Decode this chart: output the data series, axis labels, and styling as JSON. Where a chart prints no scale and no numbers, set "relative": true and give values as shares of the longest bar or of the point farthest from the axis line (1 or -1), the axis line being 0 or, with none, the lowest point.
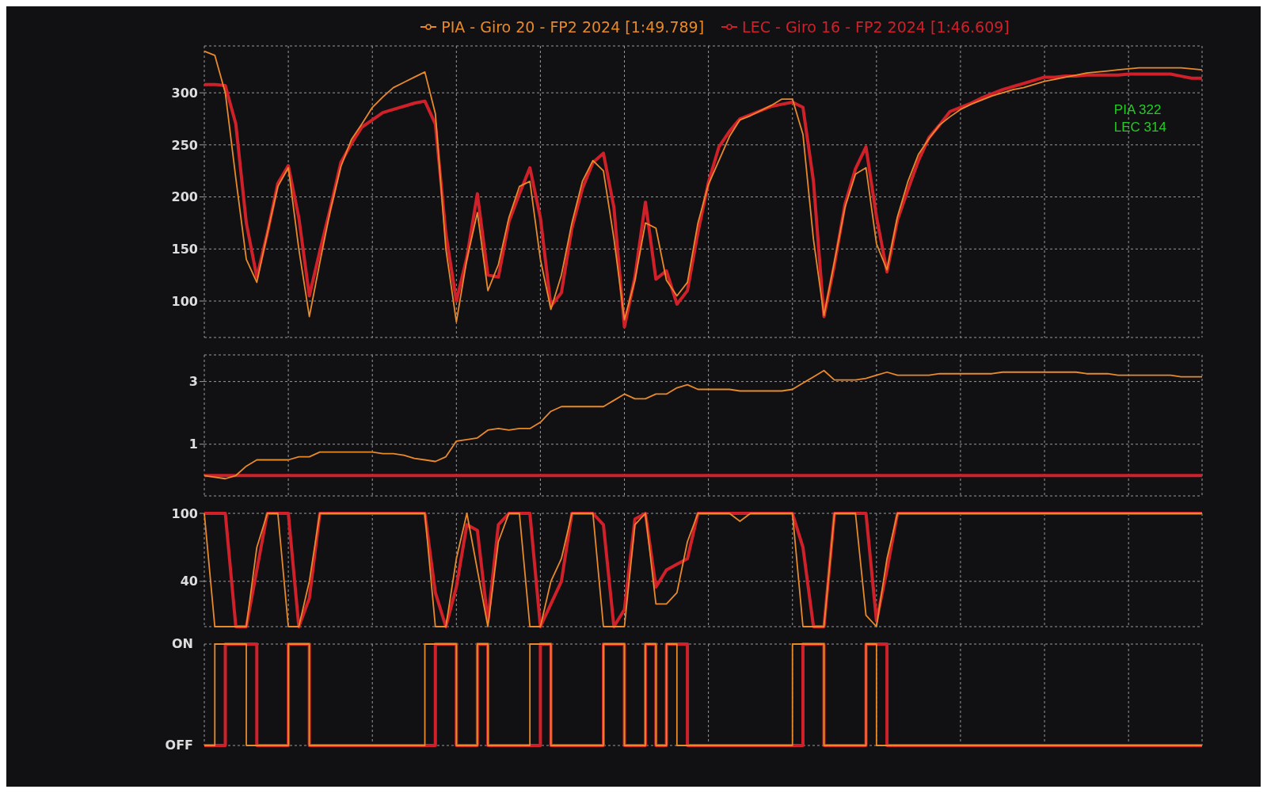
{
  "chart_data": [
    {
      "type": "line",
      "legend": "top",
      "grid": true,
      "annotations": [
        "PIA 322",
        "LEC 314"
      ],
      "ylim": [
        65,
        345
      ],
      "yticks": [
        100,
        150,
        200,
        250,
        300
      ],
      "categories": [
        null,
        null,
        null,
        null,
        null,
        null,
        null,
        null,
        null,
        null,
        null,
        null,
        null,
        null,
        null,
        null,
        null,
        null,
        null,
        null,
        null,
        null,
        null,
        null,
        null,
        null,
        null,
        null,
        null,
        null,
        null,
        null,
        null,
        null,
        null,
        null,
        null,
        null,
        null,
        null,
        null,
        null,
        null,
        null,
        null,
        null,
        null,
        null,
        null,
        null,
        null,
        null,
        null,
        null,
        null,
        null,
        null,
        null,
        null,
        null,
        null,
        null,
        null,
        null,
        null,
        null,
        null,
        null,
        null,
        null,
        null,
        null,
        null,
        null,
        null,
        null,
        null,
        null,
        null,
        null,
        null,
        null,
        null,
        null,
        null,
        null,
        null,
        null,
        null,
        null,
        null,
        null,
        null,
        null,
        null,
        null
      ],
      "series": [
        {
          "name": "PIA - Giro 20 - FP2 2024 [1:49.789]",
          "color": "#e8892a",
          "values": [
            340,
            336,
            300,
            218,
            140,
            118,
            165,
            210,
            228,
            150,
            85,
            137,
            187,
            229,
            255,
            270,
            286,
            296,
            305,
            310,
            315,
            320,
            280,
            150,
            80,
            140,
            185,
            110,
            135,
            180,
            210,
            215,
            140,
            92,
            125,
            175,
            215,
            235,
            225,
            160,
            82,
            120,
            175,
            170,
            120,
            105,
            118,
            175,
            212,
            235,
            258,
            274,
            278,
            283,
            288,
            294,
            294,
            260,
            159,
            86,
            138,
            190,
            222,
            228,
            155,
            130,
            181,
            215,
            241,
            256,
            269,
            277,
            284,
            289,
            293,
            297,
            300,
            303,
            305,
            308,
            311,
            313,
            315,
            317,
            319,
            320,
            321,
            322,
            323,
            324,
            324,
            324,
            324,
            324,
            323,
            322
          ]
        },
        {
          "name": "LEC - Giro 16 - FP2 2024 [1:46.609]",
          "color": "#d0202a",
          "values": [
            308,
            308,
            307,
            270,
            175,
            123,
            165,
            213,
            230,
            180,
            105,
            148,
            189,
            233,
            251,
            267,
            274,
            281,
            284,
            287,
            290,
            292,
            270,
            165,
            100,
            142,
            203,
            125,
            123,
            176,
            203,
            228,
            180,
            95,
            108,
            170,
            208,
            233,
            242,
            190,
            75,
            123,
            195,
            121,
            129,
            97,
            110,
            166,
            214,
            248,
            263,
            275,
            279,
            283,
            287,
            289,
            291,
            286,
            215,
            85,
            135,
            193,
            227,
            248,
            181,
            128,
            178,
            207,
            235,
            257,
            269,
            282,
            286,
            290,
            295,
            299,
            303,
            306,
            309,
            312,
            315,
            315,
            316,
            316,
            317,
            317,
            317,
            317,
            318,
            318,
            318,
            318,
            318,
            316,
            314,
            314
          ]
        }
      ]
    },
    {
      "type": "line",
      "grid": true,
      "ylim": [
        -0.65,
        3.85
      ],
      "yticks": [
        1,
        3
      ],
      "categories": [
        null,
        null,
        null,
        null,
        null,
        null,
        null,
        null,
        null,
        null,
        null,
        null,
        null,
        null,
        null,
        null,
        null,
        null,
        null,
        null,
        null,
        null,
        null,
        null,
        null,
        null,
        null,
        null,
        null,
        null,
        null,
        null,
        null,
        null,
        null,
        null,
        null,
        null,
        null,
        null,
        null,
        null,
        null,
        null,
        null,
        null,
        null,
        null,
        null,
        null,
        null,
        null,
        null,
        null,
        null,
        null,
        null,
        null,
        null,
        null,
        null,
        null,
        null,
        null,
        null,
        null,
        null,
        null,
        null,
        null,
        null,
        null,
        null,
        null,
        null,
        null,
        null,
        null,
        null,
        null,
        null,
        null,
        null,
        null,
        null,
        null,
        null,
        null,
        null,
        null,
        null,
        null,
        null,
        null,
        null,
        null
      ],
      "series": [
        {
          "color": "#e8892a",
          "values": [
            0,
            -0.05,
            -0.1,
            0,
            0.3,
            0.5,
            0.5,
            0.5,
            0.5,
            0.6,
            0.6,
            0.75,
            0.75,
            0.75,
            0.75,
            0.75,
            0.75,
            0.7,
            0.7,
            0.65,
            0.55,
            0.5,
            0.45,
            0.6,
            1.1,
            1.15,
            1.2,
            1.45,
            1.5,
            1.45,
            1.5,
            1.5,
            1.7,
            2.05,
            2.2,
            2.2,
            2.2,
            2.2,
            2.2,
            2.4,
            2.6,
            2.45,
            2.45,
            2.6,
            2.6,
            2.8,
            2.9,
            2.75,
            2.75,
            2.75,
            2.75,
            2.7,
            2.7,
            2.7,
            2.7,
            2.7,
            2.75,
            2.95,
            3.15,
            3.35,
            3.05,
            3.05,
            3.05,
            3.1,
            3.2,
            3.3,
            3.2,
            3.2,
            3.2,
            3.2,
            3.25,
            3.25,
            3.25,
            3.25,
            3.25,
            3.25,
            3.3,
            3.3,
            3.3,
            3.3,
            3.3,
            3.3,
            3.3,
            3.3,
            3.25,
            3.25,
            3.25,
            3.2,
            3.2,
            3.2,
            3.2,
            3.2,
            3.2,
            3.15,
            3.15,
            3.15
          ]
        },
        {
          "color": "#d0202a",
          "values": [
            0,
            0,
            0,
            0,
            0,
            0,
            0,
            0,
            0,
            0,
            0,
            0,
            0,
            0,
            0,
            0,
            0,
            0,
            0,
            0,
            0,
            0,
            0,
            0,
            0,
            0,
            0,
            0,
            0,
            0,
            0,
            0,
            0,
            0,
            0,
            0,
            0,
            0,
            0,
            0,
            0,
            0,
            0,
            0,
            0,
            0,
            0,
            0,
            0,
            0,
            0,
            0,
            0,
            0,
            0,
            0,
            0,
            0,
            0,
            0,
            0,
            0,
            0,
            0,
            0,
            0,
            0,
            0,
            0,
            0,
            0,
            0,
            0,
            0,
            0,
            0,
            0,
            0,
            0,
            0,
            0,
            0,
            0,
            0,
            0,
            0,
            0,
            0,
            0,
            0,
            0,
            0,
            0,
            0,
            0,
            0
          ]
        }
      ]
    },
    {
      "type": "line",
      "grid": true,
      "ylim": [
        0,
        100
      ],
      "yticks": [
        40,
        100
      ],
      "categories": [
        null,
        null,
        null,
        null,
        null,
        null,
        null,
        null,
        null,
        null,
        null,
        null,
        null,
        null,
        null,
        null,
        null,
        null,
        null,
        null,
        null,
        null,
        null,
        null,
        null,
        null,
        null,
        null,
        null,
        null,
        null,
        null,
        null,
        null,
        null,
        null,
        null,
        null,
        null,
        null,
        null,
        null,
        null,
        null,
        null,
        null,
        null,
        null,
        null,
        null,
        null,
        null,
        null,
        null,
        null,
        null,
        null,
        null,
        null,
        null,
        null,
        null,
        null,
        null,
        null,
        null,
        null,
        null,
        null,
        null,
        null,
        null,
        null,
        null,
        null,
        null,
        null,
        null,
        null,
        null,
        null,
        null,
        null,
        null,
        null,
        null,
        null,
        null,
        null,
        null,
        null,
        null,
        null,
        null,
        null,
        null
      ],
      "series": [
        {
          "color": "#e8892a",
          "values": [
            100,
            0,
            0,
            0,
            0,
            70,
            100,
            100,
            0,
            0,
            40,
            100,
            100,
            100,
            100,
            100,
            100,
            100,
            100,
            100,
            100,
            100,
            0,
            0,
            60,
            100,
            50,
            0,
            75,
            100,
            100,
            0,
            0,
            40,
            60,
            100,
            100,
            100,
            0,
            0,
            0,
            90,
            100,
            20,
            20,
            30,
            75,
            100,
            100,
            100,
            100,
            93,
            100,
            100,
            100,
            100,
            100,
            0,
            0,
            0,
            100,
            100,
            100,
            10,
            0,
            60,
            100,
            100,
            100,
            100,
            100,
            100,
            100,
            100,
            100,
            100,
            100,
            100,
            100,
            100,
            100,
            100,
            100,
            100,
            100,
            100,
            100,
            100,
            100,
            100,
            100,
            100,
            100,
            100,
            100,
            100
          ]
        },
        {
          "color": "#d0202a",
          "values": [
            100,
            100,
            100,
            0,
            0,
            50,
            100,
            100,
            100,
            0,
            25,
            100,
            100,
            100,
            100,
            100,
            100,
            100,
            100,
            100,
            100,
            100,
            30,
            0,
            35,
            90,
            85,
            5,
            90,
            100,
            100,
            100,
            0,
            20,
            40,
            100,
            100,
            100,
            90,
            0,
            15,
            95,
            100,
            35,
            50,
            55,
            60,
            100,
            100,
            100,
            100,
            100,
            100,
            100,
            100,
            100,
            100,
            70,
            0,
            0,
            100,
            100,
            100,
            100,
            5,
            50,
            100,
            100,
            100,
            100,
            100,
            100,
            100,
            100,
            100,
            100,
            100,
            100,
            100,
            100,
            100,
            100,
            100,
            100,
            100,
            100,
            100,
            100,
            100,
            100,
            100,
            100,
            100,
            100,
            100,
            100
          ]
        }
      ]
    },
    {
      "type": "step",
      "grid": true,
      "relative": true,
      "annotations": [
        "ON",
        "OFF"
      ],
      "categories": [
        null,
        null,
        null,
        null,
        null,
        null,
        null,
        null,
        null,
        null,
        null,
        null,
        null,
        null,
        null,
        null,
        null,
        null,
        null,
        null,
        null,
        null,
        null,
        null,
        null,
        null,
        null,
        null,
        null,
        null,
        null,
        null,
        null,
        null,
        null,
        null,
        null,
        null,
        null,
        null,
        null,
        null,
        null,
        null,
        null,
        null,
        null,
        null,
        null,
        null,
        null,
        null,
        null,
        null,
        null,
        null,
        null,
        null,
        null,
        null,
        null,
        null,
        null,
        null,
        null,
        null,
        null,
        null,
        null,
        null,
        null,
        null,
        null,
        null,
        null,
        null,
        null,
        null,
        null,
        null,
        null,
        null,
        null,
        null,
        null,
        null,
        null,
        null,
        null,
        null,
        null,
        null,
        null,
        null,
        null,
        null
      ],
      "series": [
        {
          "color": "#e8892a",
          "values": [
            0,
            1,
            1,
            1,
            0,
            0,
            0,
            0,
            1,
            1,
            0,
            0,
            0,
            0,
            0,
            0,
            0,
            0,
            0,
            0,
            0,
            1,
            1,
            1,
            0,
            0,
            1,
            0,
            0,
            0,
            0,
            1,
            1,
            0,
            0,
            0,
            0,
            0,
            1,
            1,
            0,
            0,
            1,
            0,
            1,
            0,
            0,
            0,
            0,
            0,
            0,
            0,
            0,
            0,
            0,
            0,
            1,
            1,
            1,
            0,
            0,
            0,
            0,
            1,
            0,
            0,
            0,
            0,
            0,
            0,
            0,
            0,
            0,
            0,
            0,
            0,
            0,
            0,
            0,
            0,
            0,
            0,
            0,
            0,
            0,
            0,
            0,
            0,
            0,
            0,
            0,
            0,
            0,
            0,
            0,
            0
          ]
        },
        {
          "color": "#d0202a",
          "values": [
            0,
            0,
            1,
            1,
            1,
            0,
            0,
            0,
            1,
            1,
            0,
            0,
            0,
            0,
            0,
            0,
            0,
            0,
            0,
            0,
            0,
            0,
            1,
            1,
            0,
            0,
            1,
            0,
            0,
            0,
            0,
            0,
            1,
            0,
            0,
            0,
            0,
            0,
            1,
            1,
            0,
            0,
            1,
            0,
            1,
            1,
            0,
            0,
            0,
            0,
            0,
            0,
            0,
            0,
            0,
            0,
            0,
            1,
            1,
            0,
            0,
            0,
            0,
            1,
            1,
            0,
            0,
            0,
            0,
            0,
            0,
            0,
            0,
            0,
            0,
            0,
            0,
            0,
            0,
            0,
            0,
            0,
            0,
            0,
            0,
            0,
            0,
            0,
            0,
            0,
            0,
            0,
            0,
            0,
            0,
            0
          ]
        }
      ]
    }
  ]
}
